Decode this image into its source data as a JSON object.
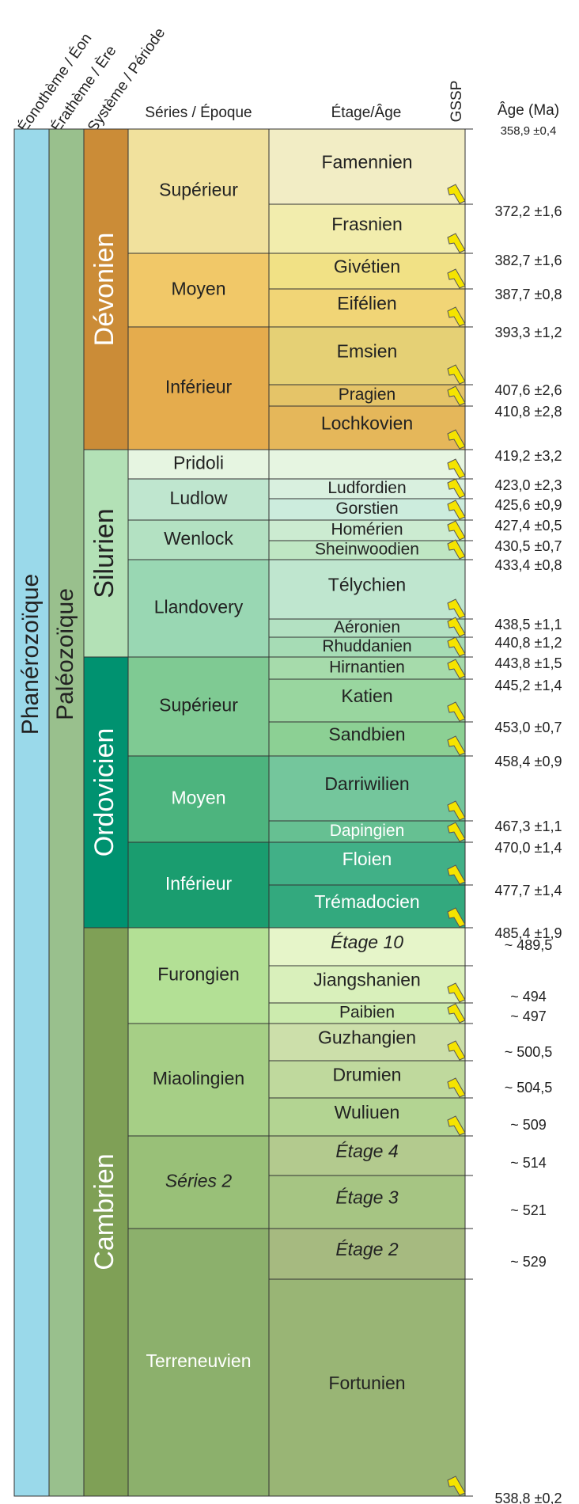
{
  "headers": {
    "eon": "Éonothème / Éon",
    "era": "Érathème / Ère",
    "system": "Système / Période",
    "series": "Séries / Époque",
    "stage": "Étage/Âge",
    "gssp": "GSSP",
    "age": "Âge (Ma)"
  },
  "eon": {
    "label": "Phanérozoïque",
    "color": "#9AD9EA"
  },
  "era": {
    "label": "Paléozoïque",
    "color": "#99C08D"
  },
  "systems": [
    {
      "label": "Dévonien",
      "color": "#CB8C37"
    },
    {
      "label": "Silurien",
      "color": "#B3E1B6"
    },
    {
      "label": "Ordovicien",
      "color": "#009270"
    },
    {
      "label": "Cambrien",
      "color": "#7FA056"
    }
  ],
  "series": [
    {
      "label": "Supérieur",
      "color": "#F1E19D"
    },
    {
      "label": "Moyen",
      "color": "#F1C868"
    },
    {
      "label": "Inférieur",
      "color": "#E5AC4D"
    },
    {
      "label": "Pridoli",
      "color": "#E6F5E1"
    },
    {
      "label": "Ludlow",
      "color": "#BFE6CF"
    },
    {
      "label": "Wenlock",
      "color": "#B3E1C2"
    },
    {
      "label": "Llandovery",
      "color": "#99D7B3"
    },
    {
      "label": "Supérieur",
      "color": "#7FCA93"
    },
    {
      "label": "Moyen",
      "color": "#4DB47E"
    },
    {
      "label": "Inférieur",
      "color": "#1A9D6F"
    },
    {
      "label": "Furongien",
      "color": "#B3E095"
    },
    {
      "label": "Miaolingien",
      "color": "#A6CF86"
    },
    {
      "label": "Séries 2",
      "color": "#99C078",
      "italic": true
    },
    {
      "label": "Terreneuvien",
      "color": "#8CB06C"
    }
  ],
  "stages": [
    {
      "label": "Famennien",
      "color": "#F2EDC5",
      "gssp": true
    },
    {
      "label": "Frasnien",
      "color": "#F2EDAD",
      "gssp": true
    },
    {
      "label": "Givétien",
      "color": "#F1E185",
      "gssp": true
    },
    {
      "label": "Eifélien",
      "color": "#F1D576",
      "gssp": true
    },
    {
      "label": "Emsien",
      "color": "#E5D075",
      "gssp": true
    },
    {
      "label": "Pragien",
      "color": "#E5C468",
      "gssp": true
    },
    {
      "label": "Lochkovien",
      "color": "#E5B75A",
      "gssp": true
    },
    {
      "label": "",
      "color": "#E6F5E1",
      "gssp": true
    },
    {
      "label": "Ludfordien",
      "color": "#D9F0DF",
      "gssp": true
    },
    {
      "label": "Gorstien",
      "color": "#CCECDD",
      "gssp": true
    },
    {
      "label": "Homérien",
      "color": "#CCEBD1",
      "gssp": true
    },
    {
      "label": "Sheinwoodien",
      "color": "#BFE6C3",
      "gssp": true
    },
    {
      "label": "Télychien",
      "color": "#BFE6CF",
      "gssp": true
    },
    {
      "label": "Aéronien",
      "color": "#B3E1C2",
      "gssp": true
    },
    {
      "label": "Rhuddanien",
      "color": "#A6DCB5",
      "gssp": true
    },
    {
      "label": "Hirnantien",
      "color": "#A6DBAB",
      "gssp": true
    },
    {
      "label": "Katien",
      "color": "#99D69F",
      "gssp": true
    },
    {
      "label": "Sandbien",
      "color": "#8CD094",
      "gssp": true
    },
    {
      "label": "Darriwilien",
      "color": "#74C69C",
      "gssp": true
    },
    {
      "label": "Dapingien",
      "color": "#66C092",
      "gssp": true
    },
    {
      "label": "Floien",
      "color": "#41B087",
      "gssp": true
    },
    {
      "label": "Trémadocien",
      "color": "#33A97E",
      "gssp": true
    },
    {
      "label": "Étage 10",
      "color": "#E6F5C9",
      "gssp": false,
      "italic": true
    },
    {
      "label": "Jiangshanien",
      "color": "#D9F0BB",
      "gssp": true
    },
    {
      "label": "Paibien",
      "color": "#CCEBAE",
      "gssp": true
    },
    {
      "label": "Guzhangien",
      "color": "#CCDFAA",
      "gssp": true
    },
    {
      "label": "Drumien",
      "color": "#BFD99D",
      "gssp": true
    },
    {
      "label": "Wuliuen",
      "color": "#B3D492",
      "gssp": true
    },
    {
      "label": "Étage 4",
      "color": "#B3CA8E",
      "gssp": false,
      "italic": true
    },
    {
      "label": "Étage 3",
      "color": "#A6C583",
      "gssp": false,
      "italic": true
    },
    {
      "label": "Étage 2",
      "color": "#A6BA80",
      "gssp": false,
      "italic": true
    },
    {
      "label": "Fortunien",
      "color": "#99B575",
      "gssp": true
    }
  ],
  "ages": [
    "358,9 ±0,4",
    "372,2 ±1,6",
    "382,7 ±1,6",
    "387,7 ±0,8",
    "393,3 ±1,2",
    "407,6 ±2,6",
    "410,8 ±2,8",
    "419,2 ±3,2",
    "423,0 ±2,3",
    "425,6 ±0,9",
    "427,4 ±0,5",
    "430,5 ±0,7",
    "433,4 ±0,8",
    "438,5 ±1,1",
    "440,8 ±1,2",
    "443,8 ±1,5",
    "445,2 ±1,4",
    "453,0 ±0,7",
    "458,4 ±0,9",
    "467,3 ±1,1",
    "470,0 ±1,4",
    "477,7 ±1,4",
    "485,4 ±1,9",
    "~ 489,5",
    "~ 494",
    "~ 497",
    "~ 500,5",
    "~ 504,5",
    "~ 509",
    "~ 514",
    "~ 521",
    "~ 529",
    "538,8 ±0,2"
  ]
}
